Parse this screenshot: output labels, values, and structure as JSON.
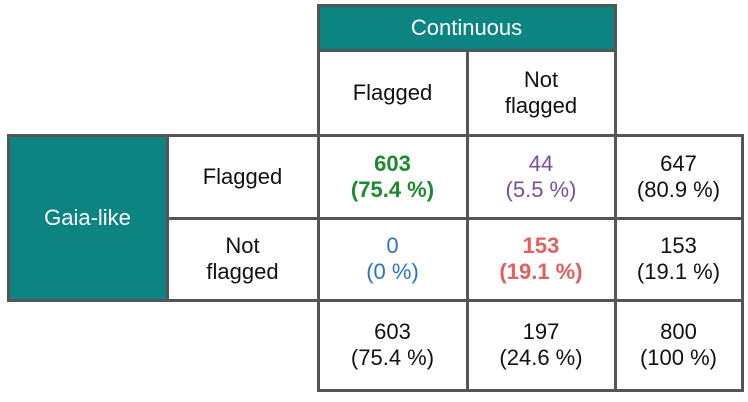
{
  "column_group": "Continuous",
  "column_labels": [
    [
      "Flagged"
    ],
    [
      "Not",
      "flagged"
    ]
  ],
  "row_group": "Gaia-like",
  "row_labels": [
    [
      "Flagged"
    ],
    [
      "Not",
      "flagged"
    ]
  ],
  "cells": [
    [
      [
        "603",
        "(75.4 %)"
      ],
      [
        "44",
        "(5.5 %)"
      ]
    ],
    [
      [
        "0",
        "(0 %)"
      ],
      [
        "153",
        "(19.1 %)"
      ]
    ]
  ],
  "row_totals": [
    [
      "647",
      "(80.9 %)"
    ],
    [
      "153",
      "(19.1 %)"
    ]
  ],
  "column_totals": [
    [
      "603",
      "(75.4 %)"
    ],
    [
      "197",
      "(24.6 %)"
    ],
    [
      "800",
      "(100 %)"
    ]
  ]
}
